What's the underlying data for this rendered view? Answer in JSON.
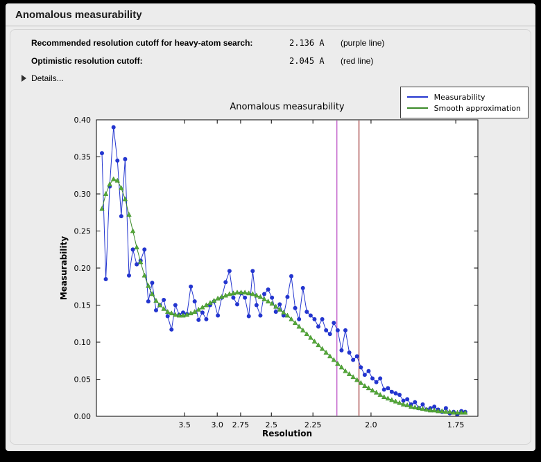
{
  "window": {
    "title": "Anomalous measurability"
  },
  "info": {
    "rows": [
      {
        "label": "Recommended resolution cutoff for heavy-atom search:",
        "value": "2.136 A",
        "note": "(purple line)"
      },
      {
        "label": "Optimistic resolution cutoff:",
        "value": "2.045 A",
        "note": "(red line)"
      }
    ],
    "details_label": "Details..."
  },
  "chart_data": {
    "type": "line",
    "title": "Anomalous measurability",
    "xlabel": "Resolution",
    "ylabel": "Measurability",
    "legend_position": "upper right (outside plot, figure top-right)",
    "grid": false,
    "x_axis": {
      "transform": "1/d^2",
      "units": "Angstrom (d-spacing, decreasing to the right)",
      "range_s": [
        0.002,
        0.3465
      ],
      "tick_d_values": [
        3.5,
        3.0,
        2.75,
        2.5,
        2.25,
        2.0,
        1.75
      ],
      "tick_labels": [
        "3.5",
        "3.0",
        "2.75",
        "2.5",
        "2.25",
        "2.0",
        "1.75"
      ]
    },
    "y_axis": {
      "range": [
        0.0,
        0.4
      ],
      "tick_values": [
        0.0,
        0.05,
        0.1,
        0.15,
        0.2,
        0.25,
        0.3,
        0.35,
        0.4
      ],
      "tick_labels": [
        "0.00",
        "0.05",
        "0.10",
        "0.15",
        "0.20",
        "0.25",
        "0.30",
        "0.35",
        "0.40"
      ]
    },
    "x_s_start": 0.007,
    "x_s_step": 0.00349,
    "series": [
      {
        "name": "Measurability",
        "color": "#2335cf",
        "marker": "circle",
        "values": [
          0.355,
          0.185,
          0.31,
          0.39,
          0.345,
          0.27,
          0.347,
          0.19,
          0.225,
          0.205,
          0.21,
          0.225,
          0.155,
          0.18,
          0.143,
          0.15,
          0.157,
          0.135,
          0.117,
          0.15,
          0.137,
          0.14,
          0.138,
          0.175,
          0.155,
          0.13,
          0.14,
          0.131,
          0.15,
          0.155,
          0.136,
          0.16,
          0.181,
          0.196,
          0.16,
          0.151,
          0.166,
          0.16,
          0.135,
          0.196,
          0.15,
          0.136,
          0.165,
          0.171,
          0.16,
          0.141,
          0.151,
          0.136,
          0.161,
          0.189,
          0.146,
          0.131,
          0.173,
          0.141,
          0.136,
          0.131,
          0.121,
          0.131,
          0.116,
          0.111,
          0.126,
          0.116,
          0.089,
          0.116,
          0.086,
          0.076,
          0.081,
          0.066,
          0.056,
          0.061,
          0.051,
          0.046,
          0.051,
          0.036,
          0.038,
          0.033,
          0.031,
          0.029,
          0.021,
          0.023,
          0.016,
          0.019,
          0.011,
          0.016,
          0.009,
          0.011,
          0.013,
          0.009,
          0.006,
          0.011,
          0.004,
          0.006,
          0.003,
          0.007,
          0.006
        ]
      },
      {
        "name": "Smooth approximation",
        "color": "#3a8a28",
        "marker": "triangle",
        "marker_color": "#55a838",
        "values": [
          0.28,
          0.3,
          0.313,
          0.32,
          0.318,
          0.308,
          0.293,
          0.272,
          0.25,
          0.228,
          0.208,
          0.19,
          0.176,
          0.165,
          0.156,
          0.15,
          0.145,
          0.141,
          0.139,
          0.137,
          0.136,
          0.136,
          0.137,
          0.139,
          0.141,
          0.144,
          0.147,
          0.15,
          0.153,
          0.156,
          0.159,
          0.161,
          0.163,
          0.165,
          0.166,
          0.167,
          0.167,
          0.167,
          0.166,
          0.165,
          0.163,
          0.161,
          0.158,
          0.155,
          0.152,
          0.148,
          0.144,
          0.14,
          0.136,
          0.131,
          0.126,
          0.121,
          0.116,
          0.111,
          0.106,
          0.101,
          0.096,
          0.091,
          0.086,
          0.081,
          0.076,
          0.071,
          0.066,
          0.061,
          0.057,
          0.053,
          0.049,
          0.045,
          0.041,
          0.038,
          0.035,
          0.032,
          0.029,
          0.026,
          0.024,
          0.022,
          0.02,
          0.018,
          0.016,
          0.015,
          0.013,
          0.012,
          0.011,
          0.01,
          0.009,
          0.008,
          0.008,
          0.007,
          0.007,
          0.006,
          0.006,
          0.005,
          0.005,
          0.005,
          0.005
        ]
      }
    ],
    "vlines": [
      {
        "d": 2.136,
        "s": 0.21918,
        "color": "#bd53c6",
        "label": "purple line (recommended cutoff)"
      },
      {
        "d": 2.045,
        "s": 0.23912,
        "color": "#a03a3a",
        "label": "red line (optimistic cutoff)"
      }
    ]
  }
}
